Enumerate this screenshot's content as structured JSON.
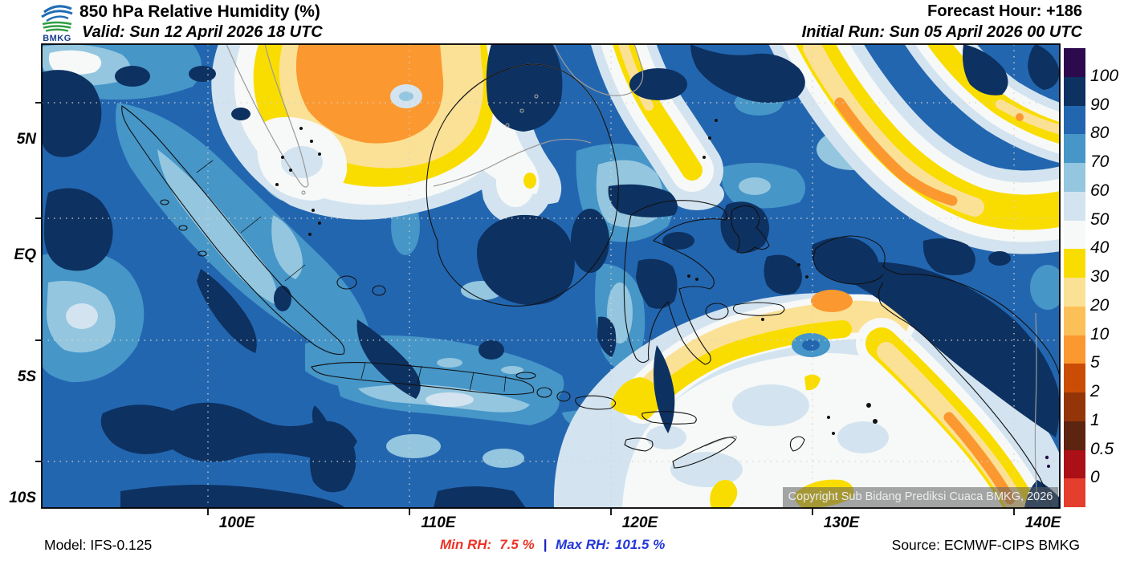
{
  "header": {
    "logo_text": "BMKG",
    "title": "850 hPa Relative Humidity (%)",
    "valid_line": "Valid: Sun 12 April 2026 18 UTC",
    "forecast_hour_line": "Forecast Hour: +186",
    "initial_run_line": "Initial Run: Sun 05 April 2026 00 UTC"
  },
  "map": {
    "copyright_overlay": "Copyright Sub Bidang Prediksi Cuaca BMKG, 2026",
    "x_axis_labels": [
      "100E",
      "110E",
      "120E",
      "130E",
      "140E"
    ],
    "y_axis_labels": [
      "5N",
      "EQ",
      "5S",
      "10S"
    ]
  },
  "colorbar": {
    "tick_labels": [
      "100",
      "90",
      "80",
      "70",
      "60",
      "50",
      "40",
      "30",
      "20",
      "10",
      "5",
      "2",
      "1",
      "0.5",
      "0"
    ],
    "band_colors_top_to_bottom": [
      "#2d0a4d",
      "#0d3161",
      "#2366b0",
      "#4696c8",
      "#94c6df",
      "#d3e4f0",
      "#f7f9f8",
      "#fadd00",
      "#fbe195",
      "#fcc058",
      "#fb9830",
      "#cb4d05",
      "#943509",
      "#5d2410",
      "#aa1016",
      "#e43e2f"
    ]
  },
  "footer": {
    "model_line": "Model: IFS-0.125",
    "min_rh_label": "Min RH:",
    "min_rh_value": "7.5 %",
    "separator": "|",
    "max_rh_label": "Max RH:",
    "max_rh_value": "101.5 %",
    "source_line": "Source: ECMWF-CIPS BMKG"
  },
  "colors": {
    "min_rh_color": "#ee3224",
    "max_rh_color": "#2236d9"
  }
}
